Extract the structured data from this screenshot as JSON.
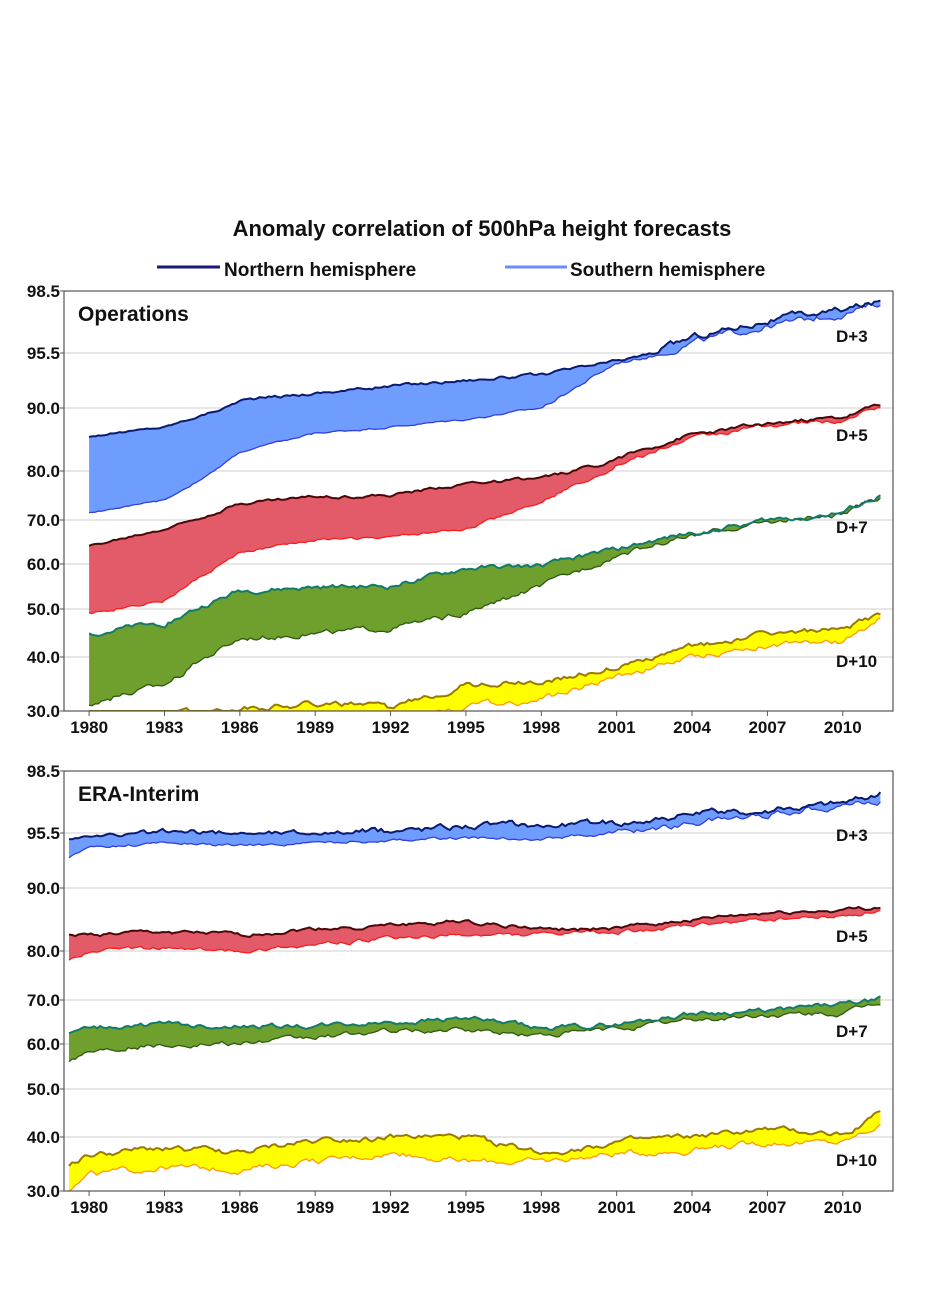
{
  "title": "Anomaly correlation of 500hPa height forecasts",
  "legend": [
    {
      "name": "Northern hemisphere",
      "color": "#1a1a7a"
    },
    {
      "name": "Southern hemisphere",
      "color": "#6b8bff"
    }
  ],
  "colors": {
    "D+3": {
      "fill": "#6f9dff",
      "nh": "#0a1a6e",
      "sh": "#2f3fe0"
    },
    "D+5": {
      "fill": "#e35a68",
      "nh": "#4a0808",
      "sh": "#ff1a1a"
    },
    "D+7": {
      "fill": "#6fa02e",
      "nh": "#137a6a",
      "sh": "#2e5a10"
    },
    "D+10": {
      "fill": "#ffff00",
      "nh": "#9a7a00",
      "sh": "#ff9a00"
    }
  },
  "chart_data": [
    {
      "type": "area",
      "panel": "Operations",
      "title": "Operations",
      "y_ticks": [
        "98.5",
        "95.5",
        "90.0",
        "80.0",
        "70.0",
        "60.0",
        "50.0",
        "40.0",
        "30.0"
      ],
      "y_tick_values": [
        98.5,
        95.5,
        90.0,
        80.0,
        70.0,
        60.0,
        50.0,
        40.0,
        30.0
      ],
      "x_ticks": [
        "1980",
        "1983",
        "1986",
        "1989",
        "1992",
        "1995",
        "1998",
        "2001",
        "2004",
        "2007",
        "2010"
      ],
      "xlim": [
        1979,
        2012
      ],
      "x_knots": [
        1980,
        1983,
        1986,
        1989,
        1992,
        1995,
        1998,
        2001,
        2004,
        2007,
        2010,
        2011.5
      ],
      "series": [
        {
          "lead": "D+3",
          "nh": [
            85.5,
            87.0,
            90.8,
            91.5,
            92.2,
            92.8,
            93.3,
            94.7,
            96.3,
            97.1,
            97.6,
            98.0
          ],
          "sh": [
            71.5,
            74.0,
            83.0,
            86.0,
            87.0,
            88.2,
            90.0,
            94.5,
            96.0,
            96.8,
            97.4,
            97.9
          ]
        },
        {
          "lead": "D+5",
          "nh": [
            64.0,
            68.0,
            73.5,
            74.8,
            75.0,
            77.5,
            78.5,
            82.0,
            85.8,
            87.5,
            88.5,
            90.5
          ],
          "sh": [
            49.0,
            52.0,
            62.5,
            65.5,
            66.0,
            68.0,
            74.0,
            81.0,
            85.2,
            87.2,
            88.0,
            90.2
          ]
        },
        {
          "lead": "D+7",
          "nh": [
            45.0,
            47.0,
            54.0,
            54.8,
            55.0,
            59.0,
            59.5,
            63.5,
            67.0,
            70.0,
            71.5,
            75.0
          ],
          "sh": [
            31.5,
            35.0,
            44.0,
            45.0,
            46.0,
            49.0,
            55.0,
            62.0,
            66.5,
            69.5,
            71.0,
            74.5
          ]
        },
        {
          "lead": "D+10",
          "nh": [
            29.0,
            29.0,
            30.5,
            31.5,
            30.5,
            35.0,
            35.5,
            38.0,
            42.0,
            45.0,
            45.5,
            49.0
          ],
          "sh": [
            28.0,
            28.0,
            28.0,
            28.0,
            28.0,
            31.0,
            32.0,
            36.5,
            40.0,
            42.5,
            43.0,
            48.5
          ]
        }
      ]
    },
    {
      "type": "area",
      "panel": "ERA-Interim",
      "title": "ERA-Interim",
      "y_ticks": [
        "98.5",
        "95.5",
        "90.0",
        "80.0",
        "70.0",
        "60.0",
        "50.0",
        "40.0",
        "30.0"
      ],
      "y_tick_values": [
        98.5,
        95.5,
        90.0,
        80.0,
        70.0,
        60.0,
        50.0,
        40.0,
        30.0
      ],
      "x_ticks": [
        "1980",
        "1983",
        "1986",
        "1989",
        "1992",
        "1995",
        "1998",
        "2001",
        "2004",
        "2007",
        "2010"
      ],
      "xlim": [
        1979,
        2012
      ],
      "x_knots": [
        1979.2,
        1980,
        1983,
        1986,
        1989,
        1992,
        1995,
        1998,
        2001,
        2004,
        2007,
        2010,
        2011.5
      ],
      "series": [
        {
          "lead": "D+3",
          "nh": [
            95.0,
            95.2,
            95.5,
            95.5,
            95.5,
            95.6,
            95.9,
            95.9,
            96.0,
            96.4,
            96.6,
            97.0,
            97.4
          ],
          "sh": [
            93.0,
            94.0,
            94.5,
            94.2,
            94.5,
            94.8,
            95.0,
            95.0,
            95.5,
            96.0,
            96.4,
            96.9,
            97.0
          ]
        },
        {
          "lead": "D+5",
          "nh": [
            82.5,
            82.5,
            83.0,
            82.5,
            83.5,
            84.0,
            84.8,
            83.5,
            83.5,
            85.0,
            86.0,
            86.5,
            87.0
          ],
          "sh": [
            78.0,
            80.0,
            80.5,
            80.0,
            81.0,
            82.0,
            82.5,
            82.5,
            83.0,
            84.0,
            85.0,
            85.5,
            86.5
          ]
        },
        {
          "lead": "D+7",
          "nh": [
            62.5,
            63.5,
            64.5,
            64.0,
            64.0,
            65.0,
            66.0,
            63.5,
            64.5,
            67.0,
            67.5,
            69.0,
            70.0
          ],
          "sh": [
            56.5,
            58.5,
            60.0,
            60.0,
            61.5,
            63.0,
            63.0,
            62.0,
            63.5,
            65.5,
            66.5,
            66.8,
            69.5
          ]
        },
        {
          "lead": "D+10",
          "nh": [
            35.0,
            36.5,
            38.0,
            37.0,
            39.5,
            40.0,
            40.0,
            37.0,
            39.0,
            40.0,
            41.5,
            40.5,
            45.0
          ],
          "sh": [
            30.0,
            33.0,
            34.5,
            34.0,
            35.5,
            37.0,
            35.5,
            35.5,
            37.0,
            37.5,
            39.0,
            39.0,
            42.5
          ]
        }
      ]
    }
  ]
}
